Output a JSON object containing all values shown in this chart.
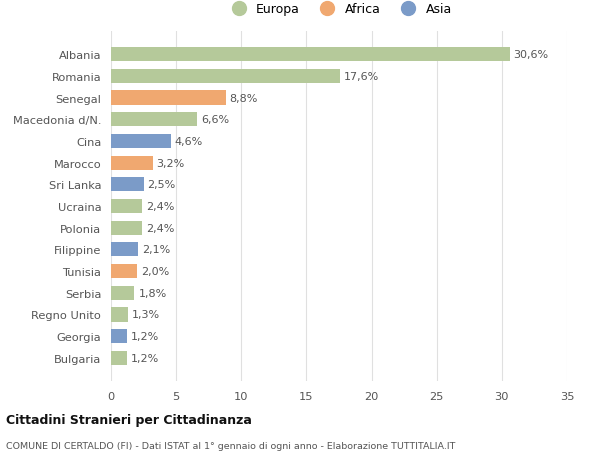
{
  "categories": [
    "Albania",
    "Romania",
    "Senegal",
    "Macedonia d/N.",
    "Cina",
    "Marocco",
    "Sri Lanka",
    "Ucraina",
    "Polonia",
    "Filippine",
    "Tunisia",
    "Serbia",
    "Regno Unito",
    "Georgia",
    "Bulgaria"
  ],
  "values": [
    30.6,
    17.6,
    8.8,
    6.6,
    4.6,
    3.2,
    2.5,
    2.4,
    2.4,
    2.1,
    2.0,
    1.8,
    1.3,
    1.2,
    1.2
  ],
  "labels": [
    "30,6%",
    "17,6%",
    "8,8%",
    "6,6%",
    "4,6%",
    "3,2%",
    "2,5%",
    "2,4%",
    "2,4%",
    "2,1%",
    "2,0%",
    "1,8%",
    "1,3%",
    "1,2%",
    "1,2%"
  ],
  "continents": [
    "Europa",
    "Europa",
    "Africa",
    "Europa",
    "Asia",
    "Africa",
    "Asia",
    "Europa",
    "Europa",
    "Asia",
    "Africa",
    "Europa",
    "Europa",
    "Asia",
    "Europa"
  ],
  "colors": {
    "Europa": "#b5c99a",
    "Africa": "#f0a870",
    "Asia": "#7b9bc8"
  },
  "title": "Cittadini Stranieri per Cittadinanza",
  "subtitle": "COMUNE DI CERTALDO (FI) - Dati ISTAT al 1° gennaio di ogni anno - Elaborazione TUTTITALIA.IT",
  "xlim": [
    0,
    35
  ],
  "xticks": [
    0,
    5,
    10,
    15,
    20,
    25,
    30,
    35
  ],
  "background_color": "#ffffff",
  "bar_height": 0.65,
  "grid_color": "#e0e0e0"
}
